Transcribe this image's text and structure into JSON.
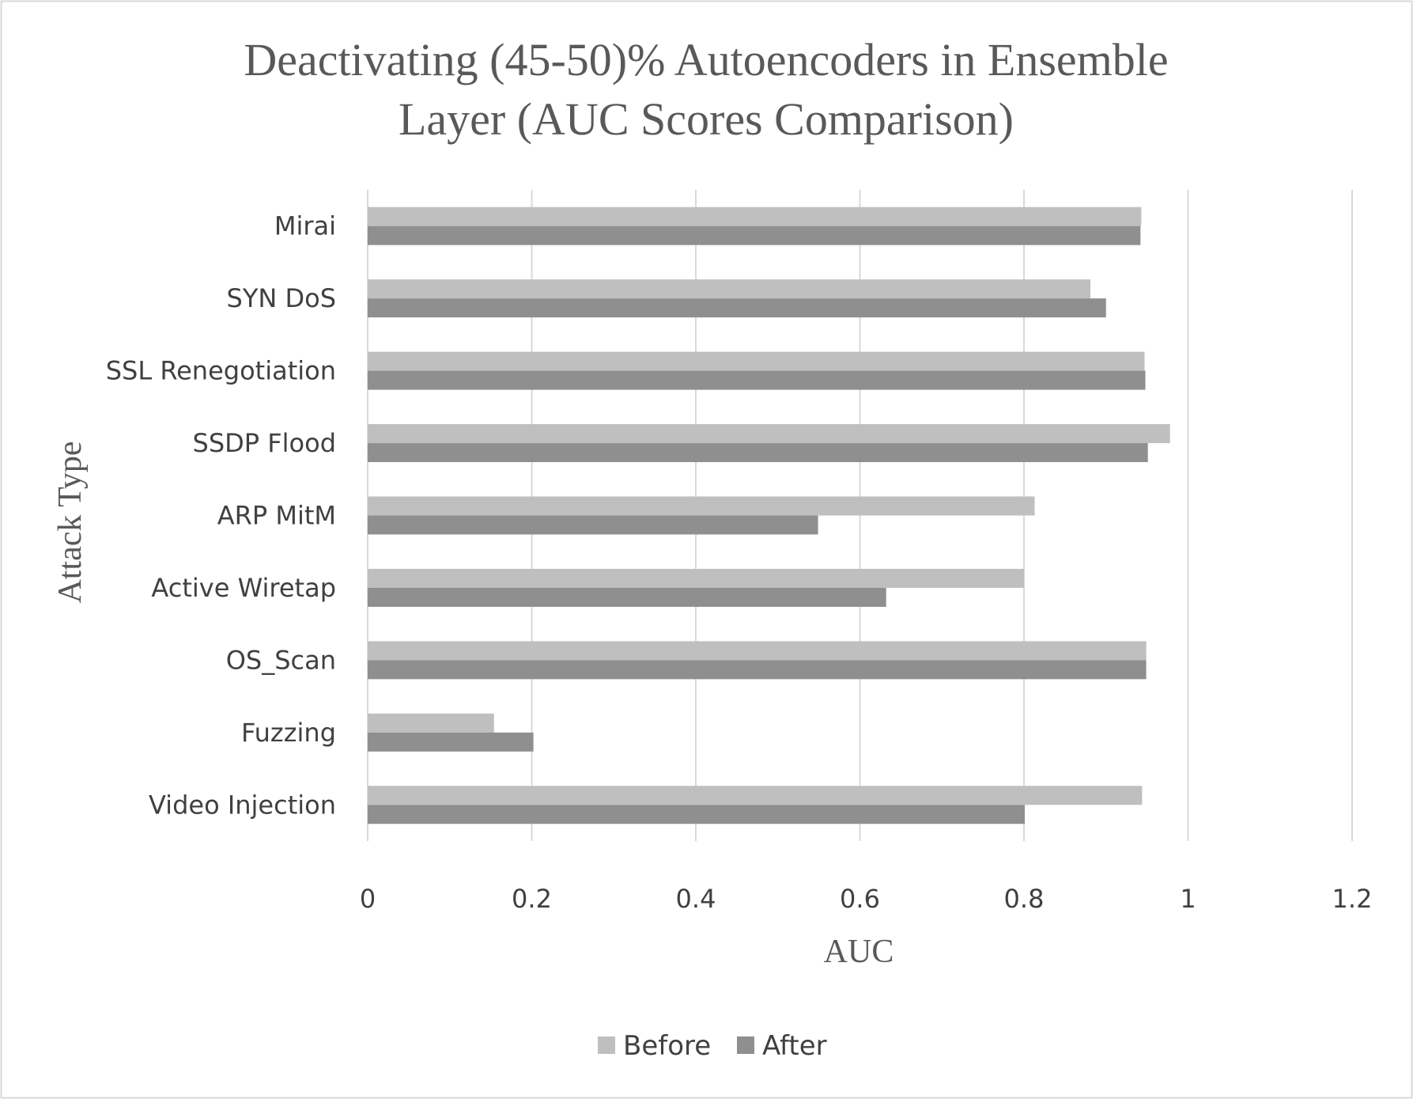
{
  "chart_data": {
    "type": "bar",
    "orientation": "horizontal",
    "title_lines": [
      "Deactivating (45-50)% Autoencoders in Ensemble",
      "Layer (AUC Scores Comparison)"
    ],
    "xlabel": "AUC",
    "ylabel": "Attack Type",
    "xlim": [
      0,
      1.2
    ],
    "x_ticks": [
      "0",
      "0.2",
      "0.4",
      "0.6",
      "0.8",
      "1",
      "1.2"
    ],
    "x_tick_values": [
      0,
      0.2,
      0.4,
      0.6,
      0.8,
      1.0,
      1.2
    ],
    "grid": true,
    "legend_position": "bottom",
    "categories": [
      "Mirai",
      "SYN DoS",
      "SSL Renegotiation",
      "SSDP Flood",
      "ARP MitM",
      "Active Wiretap",
      "OS_Scan",
      "Fuzzing",
      "Video Injection"
    ],
    "series": [
      {
        "name": "Before",
        "color": "#bfbfbf",
        "values": [
          0.943,
          0.881,
          0.947,
          0.978,
          0.813,
          0.8,
          0.949,
          0.154,
          0.944
        ]
      },
      {
        "name": "After",
        "color": "#8f8f8f",
        "values": [
          0.942,
          0.9,
          0.948,
          0.951,
          0.549,
          0.632,
          0.949,
          0.202,
          0.801
        ]
      }
    ]
  },
  "colors": {
    "background": "#ffffff",
    "border": "#d9d9d9",
    "gridline": "#d9d9d9",
    "text": "#595959"
  }
}
